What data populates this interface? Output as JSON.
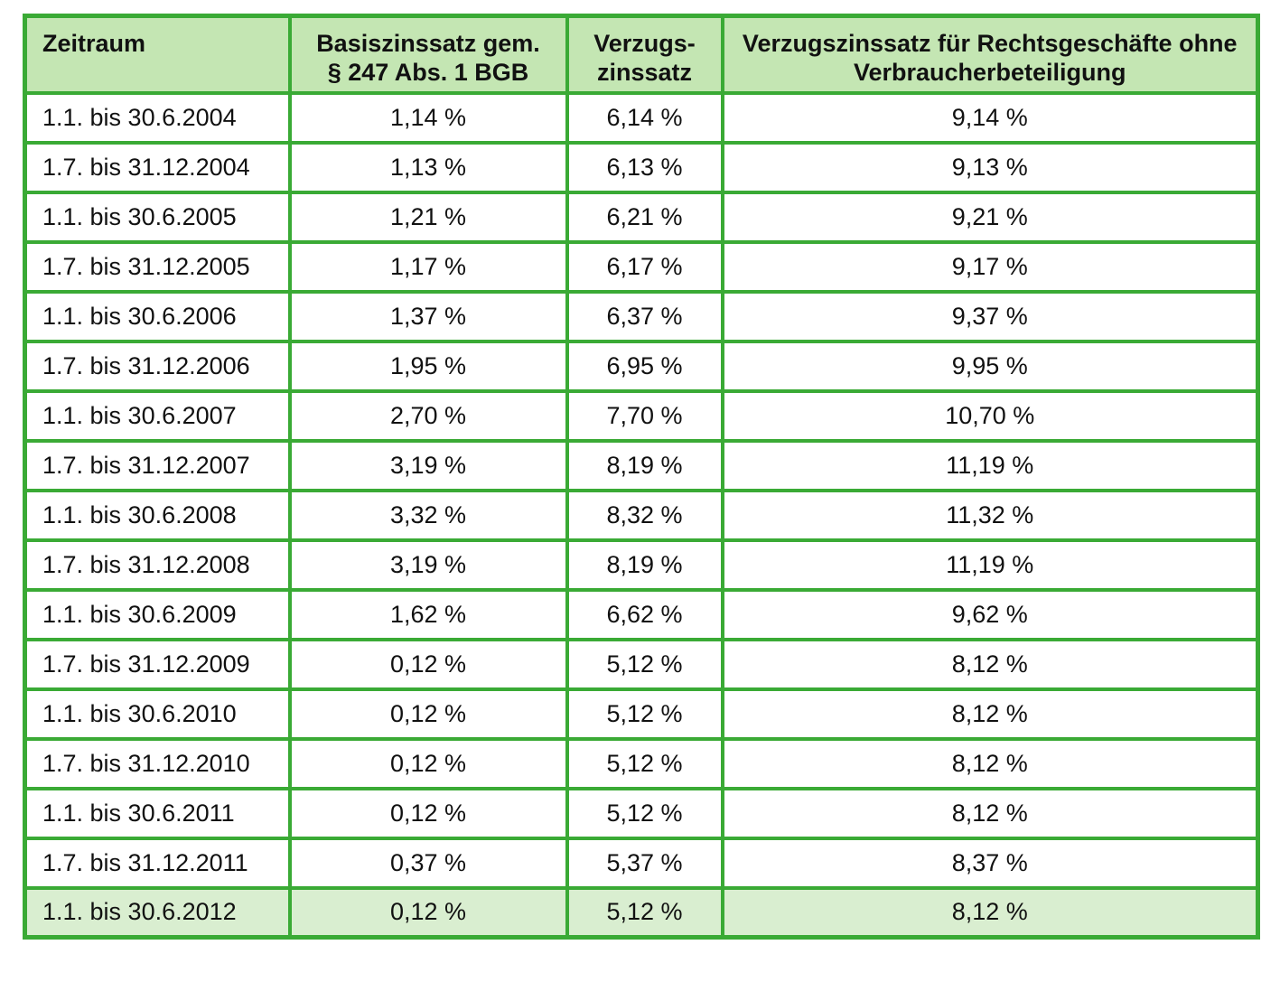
{
  "colors": {
    "border_green": "#3aaa35",
    "header_bg": "#c4e6b3",
    "highlight_row_bg": "#d9eed0",
    "text": "#111111",
    "page_bg": "#ffffff"
  },
  "table": {
    "columns": [
      {
        "label": "Zeitraum"
      },
      {
        "label": "Basiszinssatz gem.\n§ 247 Abs. 1 BGB"
      },
      {
        "label": "Verzugs-\nzinssatz"
      },
      {
        "label": "Verzugszinssatz für Rechtsgeschäfte ohne\nVerbraucherbeteiligung"
      }
    ],
    "rows": [
      [
        "1.1. bis 30.6.2004",
        "1,14 %",
        "6,14 %",
        "9,14 %"
      ],
      [
        "1.7. bis 31.12.2004",
        "1,13 %",
        "6,13 %",
        "9,13 %"
      ],
      [
        "1.1. bis 30.6.2005",
        "1,21 %",
        "6,21 %",
        "9,21 %"
      ],
      [
        "1.7. bis 31.12.2005",
        "1,17 %",
        "6,17 %",
        "9,17 %"
      ],
      [
        "1.1. bis 30.6.2006",
        "1,37 %",
        "6,37 %",
        "9,37 %"
      ],
      [
        "1.7. bis 31.12.2006",
        "1,95 %",
        "6,95 %",
        "9,95 %"
      ],
      [
        "1.1. bis 30.6.2007",
        "2,70 %",
        "7,70 %",
        "10,70 %"
      ],
      [
        "1.7. bis 31.12.2007",
        "3,19 %",
        "8,19 %",
        "11,19 %"
      ],
      [
        "1.1. bis 30.6.2008",
        "3,32 %",
        "8,32 %",
        "11,32 %"
      ],
      [
        "1.7. bis 31.12.2008",
        "3,19 %",
        "8,19 %",
        "11,19 %"
      ],
      [
        "1.1. bis 30.6.2009",
        "1,62 %",
        "6,62 %",
        "9,62 %"
      ],
      [
        "1.7. bis 31.12.2009",
        "0,12 %",
        "5,12 %",
        "8,12 %"
      ],
      [
        "1.1. bis 30.6.2010",
        "0,12 %",
        "5,12 %",
        "8,12 %"
      ],
      [
        "1.7. bis 31.12.2010",
        "0,12 %",
        "5,12 %",
        "8,12 %"
      ],
      [
        "1.1. bis 30.6.2011",
        "0,12 %",
        "5,12 %",
        "8,12 %"
      ],
      [
        "1.7. bis 31.12.2011",
        "0,37 %",
        "5,37 %",
        "8,37 %"
      ],
      [
        "1.1. bis 30.6.2012",
        "0,12 %",
        "5,12 %",
        "8,12 %"
      ]
    ],
    "highlighted_row_index": 16,
    "cell_names": [
      "period-cell",
      "basiszinssatz-cell",
      "verzugszinssatz-cell",
      "verzugszinssatz-ohne-verbraucherbeteiligung-cell"
    ]
  }
}
